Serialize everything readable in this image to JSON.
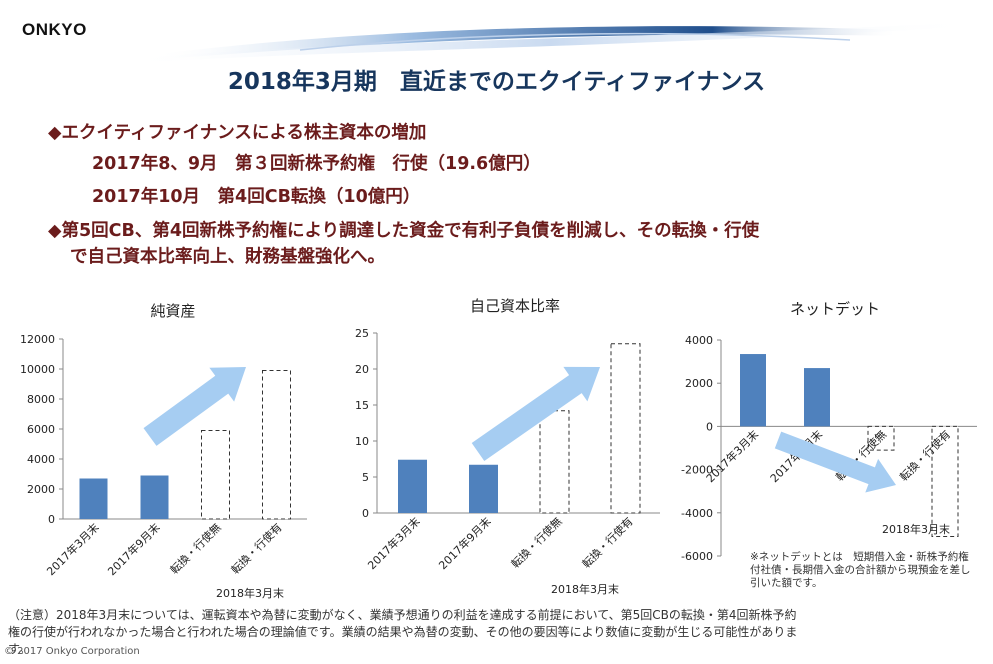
{
  "header": {
    "logo": "ONKYO",
    "title": "2018年3月期　直近までのエクイティファイナンス"
  },
  "bullets": {
    "b1": "◆エクイティファイナンスによる株主資本の増加",
    "b1_sub1": "2017年8、9月　第３回新株予約権　行使（19.6億円）",
    "b1_sub2": "2017年10月　第4回CB転換（10億円）",
    "b2_line1": "◆第5回CB、第4回新株予約権により調達した資金で有利子負債を削減し、その転換・行使",
    "b2_line2": "で自己資本比率向上、財務基盤強化へ。"
  },
  "colors": {
    "bar": "#4f81bd",
    "arrow": "#a6cdf2",
    "title": "#17365d",
    "bullet": "#6b1c1c"
  },
  "chart_data": [
    {
      "type": "bar",
      "title": "純資産",
      "categories": [
        "2017年3月末",
        "2017年9月末",
        "転換・行使無",
        "転換・行使有"
      ],
      "values": [
        2700,
        2900,
        5900,
        9900
      ],
      "dashed": [
        false,
        false,
        true,
        true
      ],
      "ylim": [
        0,
        12000
      ],
      "yticks": [
        "0",
        "2000",
        "4000",
        "6000",
        "8000",
        "10000",
        "12000"
      ],
      "group_label": "2018年3月末"
    },
    {
      "type": "bar",
      "title": "自己資本比率",
      "categories": [
        "2017年3月末",
        "2017年9月末",
        "転換・行使無",
        "転換・行使有"
      ],
      "values": [
        7.4,
        6.7,
        14.2,
        23.5
      ],
      "dashed": [
        false,
        false,
        true,
        true
      ],
      "ylim": [
        0,
        25
      ],
      "yticks": [
        "0",
        "5",
        "10",
        "15",
        "20",
        "25"
      ],
      "group_label": "2018年3月末"
    },
    {
      "type": "bar",
      "title": "ネットデット",
      "categories": [
        "2017年3月末",
        "2017年9月末",
        "転換・行使無",
        "転換・行使有"
      ],
      "values": [
        3350,
        2700,
        -1100,
        -5100
      ],
      "dashed": [
        false,
        false,
        true,
        true
      ],
      "ylim": [
        -6000,
        4000
      ],
      "yticks": [
        "-6000",
        "-4000",
        "-2000",
        "0",
        "2000",
        "4000"
      ],
      "group_label": "2018年3月末",
      "footnote_line1": "※ネットデットとは　短期借入金・新株予約権",
      "footnote_line2": "付社債・長期借入金の合計額から現預金を差し",
      "footnote_line3": "引いた額です。"
    }
  ],
  "notice": {
    "line1": "（注意）2018年3月末については、運転資本や為替に変動がなく、業績予想通りの利益を達成する前提において、第5回CBの転換・第4回新株予約",
    "line2": "権の行使が行われなかった場合と行われた場合の理論値です。業績の結果や為替の変動、その他の要因等により数値に変動が生じる可能性がありま",
    "line3": "す。"
  },
  "footer": {
    "copyright": "© 2017  Onkyo Corporation"
  }
}
